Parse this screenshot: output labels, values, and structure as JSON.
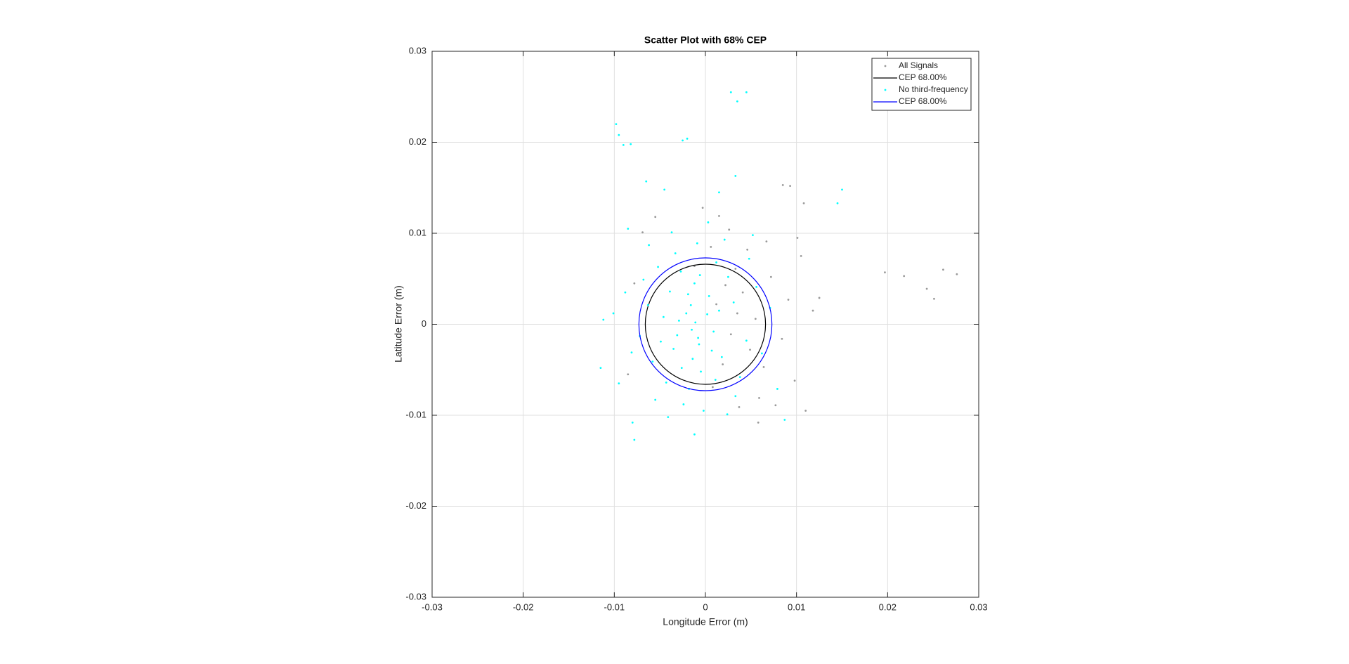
{
  "chart_data": {
    "type": "scatter",
    "title": "Scatter Plot with 68% CEP",
    "xlabel": "Longitude Error (m)",
    "ylabel": "Latitude Error (m)",
    "xlim": [
      -0.03,
      0.03
    ],
    "ylim": [
      -0.03,
      0.03
    ],
    "xticks": [
      -0.03,
      -0.02,
      -0.01,
      0,
      0.01,
      0.02,
      0.03
    ],
    "yticks": [
      -0.03,
      -0.02,
      -0.01,
      0,
      0.01,
      0.02,
      0.03
    ],
    "grid": true,
    "legend": "northeast",
    "series": [
      {
        "name": "All Signals",
        "type": "scatter",
        "color": "#999999",
        "x": [
          0.0012,
          0.0028,
          0.0041,
          0.0019,
          0.0055,
          0.0033,
          0.0008,
          0.0064,
          0.0046,
          -0.0003,
          0.0015,
          0.0072,
          0.0084,
          0.0037,
          0.0026,
          0.0059,
          0.0091,
          -0.0055,
          -0.0078,
          0.0006,
          0.0049,
          0.0022,
          -0.0012,
          0.0067,
          0.0098,
          0.0101,
          -0.0085,
          0.0035,
          0.0077,
          -0.0069,
          0.0197,
          0.0218,
          0.0243,
          0.0251,
          0.0261,
          0.0276,
          0.0125,
          0.0118,
          0.011,
          0.0058,
          0.0093,
          0.0108,
          0.0105,
          0.0085
        ],
        "y": [
          0.0022,
          -0.0011,
          0.0035,
          -0.0044,
          0.0006,
          0.0061,
          -0.0069,
          -0.0047,
          0.0082,
          0.0128,
          0.0119,
          0.0052,
          -0.0016,
          -0.0091,
          0.0104,
          -0.0081,
          0.0027,
          0.0118,
          0.0045,
          0.0085,
          -0.0028,
          0.0043,
          0.0064,
          0.0091,
          -0.0062,
          0.0095,
          -0.0055,
          0.0012,
          -0.0089,
          0.0101,
          0.0057,
          0.0053,
          0.0039,
          0.0028,
          0.006,
          0.0055,
          0.0029,
          0.0015,
          -0.0095,
          -0.0108,
          0.0152,
          0.0133,
          0.0075,
          0.0153
        ]
      },
      {
        "name": "CEP 68.00%",
        "type": "circle",
        "color": "#000000",
        "cx": 0,
        "cy": 0,
        "r": 0.0066
      },
      {
        "name": "No third-frequency",
        "type": "scatter",
        "color": "#00ffff",
        "x": [
          -0.0021,
          -0.0008,
          0.0004,
          -0.0035,
          -0.0012,
          0.0018,
          -0.0046,
          -0.0015,
          0.0002,
          -0.0027,
          0.0031,
          -0.0058,
          -0.0005,
          0.0012,
          -0.0039,
          -0.0018,
          0.0045,
          -0.0063,
          0.0007,
          -0.0031,
          0.0025,
          -0.0009,
          -0.0052,
          0.0038,
          -0.0072,
          -0.0024,
          0.0056,
          -0.0011,
          -0.0016,
          0.0009,
          -0.0043,
          0.0021,
          -0.0068,
          0.0062,
          -0.0033,
          -0.0002,
          -0.0081,
          0.0048,
          -0.0014,
          -0.0006,
          -0.0049,
          0.0015,
          -0.0026,
          0.0033,
          -0.0088,
          -0.0037,
          0.0071,
          -0.0055,
          0.0003,
          -0.0019,
          -0.0007,
          -0.0029,
          0.0011,
          -0.0095,
          0.0079,
          -0.0062,
          0.0024,
          -0.0041,
          0.0052,
          -0.0101,
          -0.0098,
          -0.0095,
          -0.009,
          -0.0082,
          -0.0025,
          -0.002,
          0.0028,
          0.0035,
          0.0045,
          -0.0065,
          -0.0045,
          0.0015,
          0.0033,
          0.015,
          0.0145,
          -0.0085,
          -0.0112,
          -0.0115,
          -0.008,
          -0.0078,
          -0.0012,
          0.0087
        ],
        "y": [
          0.0012,
          -0.0015,
          0.0031,
          -0.0027,
          0.0045,
          -0.0036,
          0.0008,
          -0.0006,
          0.0011,
          0.0058,
          0.0024,
          -0.0041,
          -0.0052,
          0.0068,
          0.0036,
          -0.0071,
          -0.0018,
          0.0021,
          -0.0029,
          -0.0012,
          0.0052,
          0.0089,
          0.0063,
          -0.0058,
          -0.0013,
          -0.0088,
          0.0041,
          0.0002,
          0.0021,
          -0.0008,
          -0.0064,
          0.0093,
          0.0049,
          -0.0032,
          0.0078,
          -0.0095,
          -0.0031,
          0.0072,
          -0.0038,
          0.0054,
          -0.0019,
          0.0015,
          -0.0048,
          -0.0079,
          0.0035,
          0.0101,
          0.0018,
          -0.0083,
          0.0112,
          0.0033,
          -0.0022,
          0.0004,
          -0.0061,
          -0.0065,
          -0.0071,
          0.0087,
          -0.0099,
          -0.0102,
          0.0098,
          0.0012,
          0.022,
          0.0208,
          0.0197,
          0.0198,
          0.0202,
          0.0204,
          0.0255,
          0.0245,
          0.0255,
          0.0157,
          0.0148,
          0.0145,
          0.0163,
          0.0148,
          0.0133,
          0.0105,
          0.0005,
          -0.0048,
          -0.0108,
          -0.0127,
          -0.0121,
          -0.0105
        ]
      },
      {
        "name": "CEP 68.00%",
        "type": "circle",
        "color": "#0000ff",
        "cx": 0,
        "cy": 0,
        "r": 0.0073
      }
    ]
  }
}
